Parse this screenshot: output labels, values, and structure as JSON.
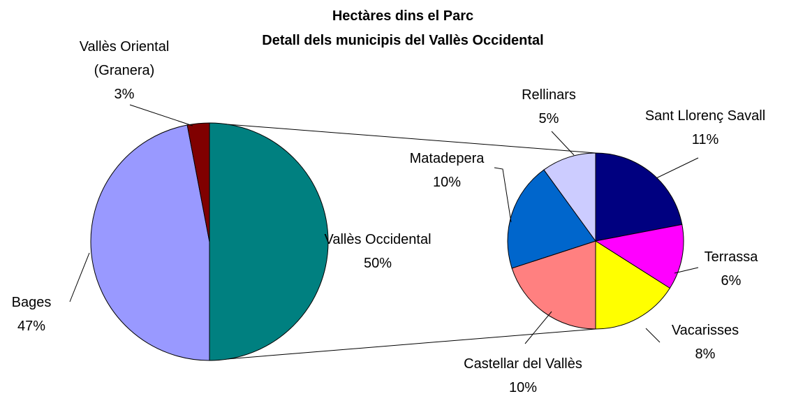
{
  "chart_data": {
    "type": "pie",
    "title": "Hectàres dins el Parc",
    "subtitle": "Detall dels municipis del Vallès Occidental",
    "categories": [
      "Vallès Occidental",
      "Bages",
      "Vallès Oriental\n(Granera)"
    ],
    "values": [
      50,
      47,
      3
    ],
    "value_labels": [
      "50%",
      "47%",
      "3%"
    ],
    "colors": [
      "#008080",
      "#9999ff",
      "#800000"
    ],
    "detail": {
      "categories": [
        "Sant Llorenç Savall",
        "Terrassa",
        "Vacarisses",
        "Castellar del Vallès",
        "Matadepera",
        "Rellinars"
      ],
      "values": [
        11,
        6,
        8,
        10,
        10,
        5
      ],
      "value_labels": [
        "11%",
        "6%",
        "8%",
        "10%",
        "10%",
        "5%"
      ],
      "colors": [
        "#000080",
        "#ff00ff",
        "#ffff00",
        "#ff8080",
        "#0066cc",
        "#ccccff"
      ]
    }
  }
}
